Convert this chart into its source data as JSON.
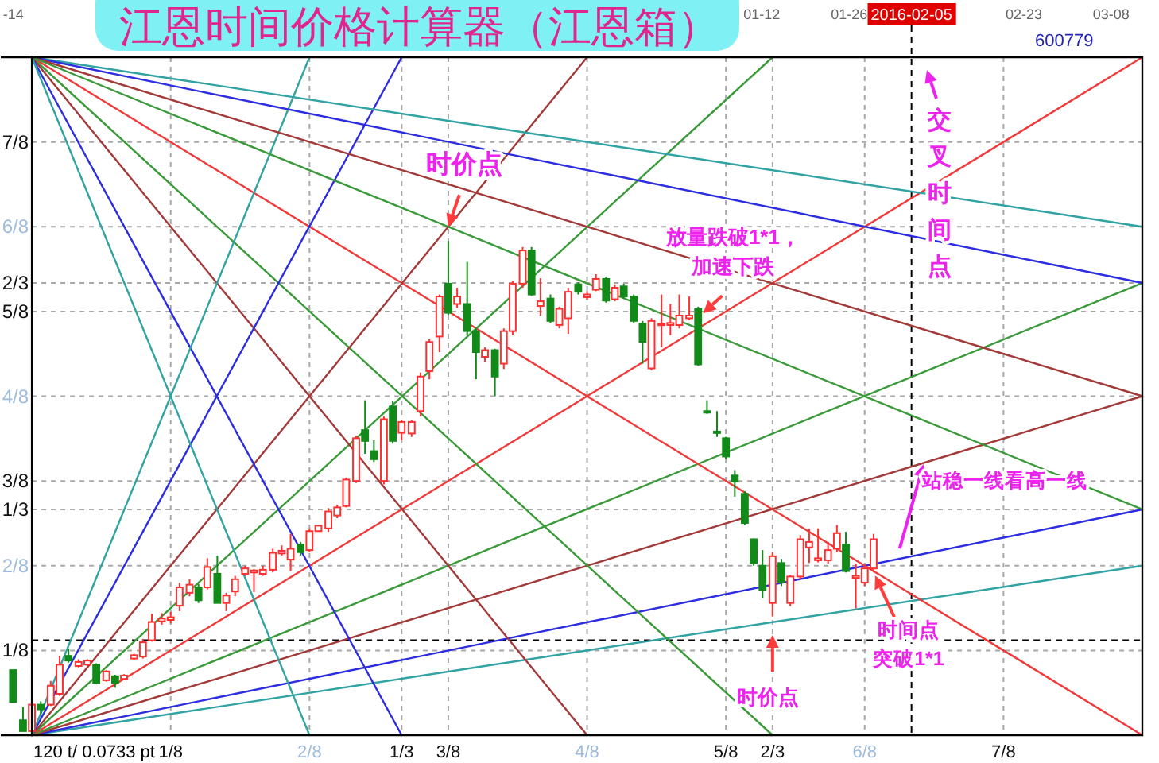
{
  "chart_data": {
    "type": "candlestick",
    "title": "江恩时间价格计算器（江恩箱）",
    "x": [
      -0.017,
      -0.008,
      0,
      0.008,
      0.017,
      0.025,
      0.033,
      0.042,
      0.05,
      0.058,
      0.067,
      0.075,
      0.083,
      0.092,
      0.1,
      0.108,
      0.117,
      0.125,
      0.133,
      0.142,
      0.15,
      0.158,
      0.167,
      0.175,
      0.183,
      0.192,
      0.2,
      0.208,
      0.217,
      0.225,
      0.233,
      0.242,
      0.25,
      0.258,
      0.267,
      0.275,
      0.283,
      0.292,
      0.3,
      0.308,
      0.317,
      0.325,
      0.333,
      0.342,
      0.35,
      0.358,
      0.367,
      0.375,
      0.383,
      0.392,
      0.4,
      0.408,
      0.417,
      0.425,
      0.433,
      0.442,
      0.45,
      0.458,
      0.467,
      0.475,
      0.483,
      0.492,
      0.5,
      0.508,
      0.517,
      0.525,
      0.533,
      0.542,
      0.55,
      0.558,
      0.567,
      0.575,
      0.583,
      0.592,
      0.6,
      0.608,
      0.617,
      0.625,
      0.633,
      0.642,
      0.65,
      0.658,
      0.667,
      0.675,
      0.683,
      0.692,
      0.7,
      0.708,
      0.717,
      0.725,
      0.733,
      0.742,
      0.75,
      0.758
    ],
    "ohlc": [
      [
        0.096,
        0.096,
        0.049,
        0.049
      ],
      [
        0.022,
        0.041,
        0.006,
        0.006
      ],
      [
        0.006,
        0.045,
        0.006,
        0.045
      ],
      [
        0.045,
        0.05,
        0.03,
        0.038
      ],
      [
        0.045,
        0.08,
        0.043,
        0.073
      ],
      [
        0.061,
        0.117,
        0.058,
        0.104
      ],
      [
        0.117,
        0.128,
        0.107,
        0.11
      ],
      [
        0.102,
        0.112,
        0.1,
        0.108
      ],
      [
        0.104,
        0.112,
        0.102,
        0.11
      ],
      [
        0.104,
        0.106,
        0.075,
        0.077
      ],
      [
        0.081,
        0.096,
        0.079,
        0.094
      ],
      [
        0.087,
        0.089,
        0.07,
        0.077
      ],
      [
        0.083,
        0.09,
        0.081,
        0.088
      ],
      [
        0.113,
        0.12,
        0.111,
        0.118
      ],
      [
        0.116,
        0.142,
        0.113,
        0.137
      ],
      [
        0.14,
        0.179,
        0.138,
        0.167
      ],
      [
        0.168,
        0.18,
        0.163,
        0.172
      ],
      [
        0.17,
        0.182,
        0.165,
        0.174
      ],
      [
        0.191,
        0.225,
        0.183,
        0.218
      ],
      [
        0.21,
        0.23,
        0.205,
        0.222
      ],
      [
        0.218,
        0.223,
        0.195,
        0.199
      ],
      [
        0.218,
        0.261,
        0.215,
        0.248
      ],
      [
        0.238,
        0.265,
        0.195,
        0.195
      ],
      [
        0.195,
        0.21,
        0.183,
        0.206
      ],
      [
        0.212,
        0.235,
        0.205,
        0.23
      ],
      [
        0.238,
        0.25,
        0.235,
        0.246
      ],
      [
        0.24,
        0.245,
        0.211,
        0.243
      ],
      [
        0.238,
        0.25,
        0.235,
        0.244
      ],
      [
        0.244,
        0.275,
        0.24,
        0.269
      ],
      [
        0.268,
        0.28,
        0.265,
        0.272
      ],
      [
        0.259,
        0.297,
        0.242,
        0.275
      ],
      [
        0.281,
        0.285,
        0.265,
        0.27
      ],
      [
        0.273,
        0.305,
        0.27,
        0.301
      ],
      [
        0.301,
        0.31,
        0.3,
        0.309
      ],
      [
        0.305,
        0.335,
        0.3,
        0.33
      ],
      [
        0.324,
        0.34,
        0.32,
        0.336
      ],
      [
        0.338,
        0.38,
        0.336,
        0.377
      ],
      [
        0.375,
        0.442,
        0.372,
        0.438
      ],
      [
        0.45,
        0.494,
        0.415,
        0.434
      ],
      [
        0.419,
        0.435,
        0.403,
        0.407
      ],
      [
        0.375,
        0.47,
        0.37,
        0.466
      ],
      [
        0.485,
        0.493,
        0.43,
        0.434
      ],
      [
        0.446,
        0.465,
        0.435,
        0.462
      ],
      [
        0.445,
        0.465,
        0.44,
        0.462
      ],
      [
        0.478,
        0.535,
        0.47,
        0.529
      ],
      [
        0.537,
        0.585,
        0.525,
        0.58
      ],
      [
        0.588,
        0.65,
        0.565,
        0.647
      ],
      [
        0.666,
        0.729,
        0.62,
        0.623
      ],
      [
        0.636,
        0.66,
        0.63,
        0.647
      ],
      [
        0.636,
        0.698,
        0.59,
        0.596
      ],
      [
        0.596,
        0.6,
        0.525,
        0.565
      ],
      [
        0.558,
        0.572,
        0.55,
        0.568
      ],
      [
        0.568,
        0.57,
        0.5,
        0.529
      ],
      [
        0.548,
        0.6,
        0.54,
        0.596
      ],
      [
        0.596,
        0.67,
        0.59,
        0.666
      ],
      [
        0.666,
        0.72,
        0.66,
        0.715
      ],
      [
        0.715,
        0.72,
        0.648,
        0.65
      ],
      [
        0.633,
        0.674,
        0.619,
        0.64
      ],
      [
        0.644,
        0.65,
        0.608,
        0.611
      ],
      [
        0.605,
        0.632,
        0.6,
        0.629
      ],
      [
        0.615,
        0.66,
        0.592,
        0.654
      ],
      [
        0.665,
        0.668,
        0.65,
        0.654
      ],
      [
        0.646,
        0.655,
        0.642,
        0.65
      ],
      [
        0.657,
        0.68,
        0.655,
        0.673
      ],
      [
        0.673,
        0.676,
        0.638,
        0.641
      ],
      [
        0.643,
        0.665,
        0.64,
        0.66
      ],
      [
        0.662,
        0.666,
        0.644,
        0.647
      ],
      [
        0.647,
        0.65,
        0.608,
        0.611
      ],
      [
        0.607,
        0.611,
        0.548,
        0.58
      ],
      [
        0.541,
        0.615,
        0.538,
        0.611
      ],
      [
        0.605,
        0.65,
        0.572,
        0.607
      ],
      [
        0.605,
        0.636,
        0.59,
        0.608
      ],
      [
        0.605,
        0.65,
        0.6,
        0.619
      ],
      [
        0.615,
        0.647,
        0.612,
        0.619
      ],
      [
        0.629,
        0.632,
        0.545,
        0.547
      ],
      [
        0.478,
        0.494,
        0.474,
        0.476
      ],
      [
        0.448,
        0.478,
        0.44,
        0.446
      ],
      [
        0.438,
        0.44,
        0.408,
        0.411
      ],
      [
        0.383,
        0.391,
        0.352,
        0.374
      ],
      [
        0.356,
        0.36,
        0.31,
        0.313
      ],
      [
        0.289,
        0.29,
        0.25,
        0.254
      ],
      [
        0.25,
        0.273,
        0.202,
        0.214
      ],
      [
        0.195,
        0.27,
        0.175,
        0.264
      ],
      [
        0.254,
        0.26,
        0.22,
        0.226
      ],
      [
        0.195,
        0.236,
        0.19,
        0.234
      ],
      [
        0.234,
        0.295,
        0.23,
        0.289
      ],
      [
        0.277,
        0.305,
        0.254,
        0.285
      ],
      [
        0.258,
        0.305,
        0.255,
        0.261
      ],
      [
        0.258,
        0.285,
        0.253,
        0.273
      ],
      [
        0.275,
        0.31,
        0.27,
        0.298
      ],
      [
        0.281,
        0.3,
        0.24,
        0.242
      ],
      [
        0.232,
        0.253,
        0.187,
        0.235
      ],
      [
        0.225,
        0.25,
        0.22,
        0.246
      ],
      [
        0.246,
        0.297,
        0.24,
        0.289
      ]
    ],
    "series": [
      {
        "type": "line",
        "color": "#31a3a3",
        "x": [
          0,
          1
        ],
        "values": [
          0,
          0.25
        ]
      },
      {
        "type": "line",
        "color": "#2c2ce0",
        "x": [
          0,
          1
        ],
        "values": [
          0,
          0.333
        ]
      },
      {
        "type": "line",
        "color": "#a33a3a",
        "x": [
          0,
          1
        ],
        "values": [
          0,
          0.5
        ]
      },
      {
        "type": "line",
        "color": "#3a9a3a",
        "x": [
          0,
          1
        ],
        "values": [
          0,
          0.667
        ]
      },
      {
        "type": "line",
        "color": "#f03a3a",
        "x": [
          0,
          1
        ],
        "values": [
          0,
          1
        ]
      },
      {
        "type": "line",
        "color": "#3a9a3a",
        "x": [
          0,
          0.667
        ],
        "values": [
          0,
          1
        ]
      },
      {
        "type": "line",
        "color": "#a33a3a",
        "x": [
          0,
          0.5
        ],
        "values": [
          0,
          1
        ]
      },
      {
        "type": "line",
        "color": "#2c2ce0",
        "x": [
          0,
          0.333
        ],
        "values": [
          0,
          1
        ]
      },
      {
        "type": "line",
        "color": "#31a3a3",
        "x": [
          0,
          0.25
        ],
        "values": [
          0,
          1
        ]
      },
      {
        "type": "line",
        "color": "#31a3a3",
        "x": [
          0,
          1
        ],
        "values": [
          1,
          0.75
        ]
      },
      {
        "type": "line",
        "color": "#2c2ce0",
        "x": [
          0,
          1
        ],
        "values": [
          1,
          0.667
        ]
      },
      {
        "type": "line",
        "color": "#a33a3a",
        "x": [
          0,
          1
        ],
        "values": [
          1,
          0.5
        ]
      },
      {
        "type": "line",
        "color": "#3a9a3a",
        "x": [
          0,
          1
        ],
        "values": [
          1,
          0.333
        ]
      },
      {
        "type": "line",
        "color": "#f03a3a",
        "x": [
          0,
          1
        ],
        "values": [
          1,
          0
        ]
      },
      {
        "type": "line",
        "color": "#3a9a3a",
        "x": [
          0,
          0.667
        ],
        "values": [
          1,
          0
        ]
      },
      {
        "type": "line",
        "color": "#a33a3a",
        "x": [
          0,
          0.5
        ],
        "values": [
          1,
          0
        ]
      },
      {
        "type": "line",
        "color": "#2c2ce0",
        "x": [
          0,
          0.333
        ],
        "values": [
          1,
          0
        ]
      },
      {
        "type": "line",
        "color": "#31a3a3",
        "x": [
          0,
          0.25
        ],
        "values": [
          1,
          0
        ]
      }
    ],
    "xlim": [
      -0.028,
      1
    ],
    "ylim": [
      0,
      1
    ],
    "xticks": [
      {
        "value": 0.125,
        "label": "1/8"
      },
      {
        "value": 0.25,
        "label": "2/8"
      },
      {
        "value": 0.333,
        "label": "1/3"
      },
      {
        "value": 0.375,
        "label": "3/8"
      },
      {
        "value": 0.5,
        "label": "4/8"
      },
      {
        "value": 0.625,
        "label": "5/8"
      },
      {
        "value": 0.667,
        "label": "2/3"
      },
      {
        "value": 0.75,
        "label": "6/8"
      },
      {
        "value": 0.875,
        "label": "7/8"
      }
    ],
    "yticks": [
      {
        "value": 0.125,
        "label": "1/8"
      },
      {
        "value": 0.25,
        "label": "2/8"
      },
      {
        "value": 0.333,
        "label": "1/3"
      },
      {
        "value": 0.375,
        "label": "3/8"
      },
      {
        "value": 0.5,
        "label": "4/8"
      },
      {
        "value": 0.625,
        "label": "5/8"
      },
      {
        "value": 0.667,
        "label": "2/3"
      },
      {
        "value": 0.75,
        "label": "6/8"
      },
      {
        "value": 0.875,
        "label": "7/8"
      }
    ],
    "x2lim": [
      "2015-09-12",
      "2016-03-13"
    ],
    "x2ticks": [
      {
        "value": "2015-09-14",
        "label": "-14"
      },
      {
        "value": "2016-01-12",
        "label": "01-12"
      },
      {
        "value": "2016-01-26",
        "label": "01-26"
      },
      {
        "value": "2016-02-23",
        "label": "02-23"
      },
      {
        "value": "2016-03-08",
        "label": "03-08"
      }
    ],
    "ref_lines": [
      {
        "axis": "x2",
        "value": "2016-02-05",
        "label": "2016-02-05",
        "color": "#000000",
        "line_style": "dashed"
      },
      {
        "axis": "y",
        "value": 0.14,
        "color": "#000000",
        "line_style": "dashed"
      }
    ],
    "grid": true,
    "annotations": [
      {
        "text": "时价点",
        "x": 0.375,
        "y": 0.75
      },
      {
        "text": "放量跌破1*1，加速下跌",
        "x": 0.603,
        "y": 0.62
      },
      "交叉时间点",
      {
        "text": "站稳一线看高一线",
        "x": 0.803,
        "y": 0.402
      },
      {
        "text": "时间点突破1*1",
        "x": 0.758,
        "y": 0.24
      },
      {
        "text": "时价点",
        "x": 0.667,
        "y": 0.15
      },
      "120 t/ 0.0733 pt",
      "600779"
    ]
  }
}
